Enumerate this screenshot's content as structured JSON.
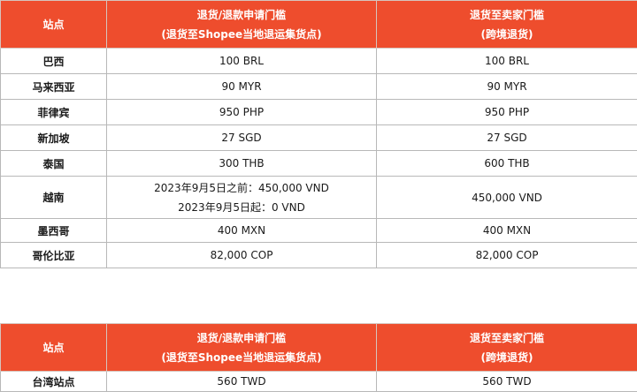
{
  "table1": {
    "header": {
      "site": "站点",
      "col2_line1": "退货/退款申请门槛",
      "col2_line2": "(退货至Shopee当地退运集货点)",
      "col3_line1": "退货至卖家门槛",
      "col3_line2": "(跨境退货)"
    },
    "rows": [
      {
        "site": "巴西",
        "local": "100 BRL",
        "seller": "100 BRL"
      },
      {
        "site": "马来西亚",
        "local": "90 MYR",
        "seller": "90 MYR"
      },
      {
        "site": "菲律宾",
        "local": "950 PHP",
        "seller": "950 PHP"
      },
      {
        "site": "新加坡",
        "local": "27 SGD",
        "seller": "27 SGD"
      },
      {
        "site": "泰国",
        "local": "300 THB",
        "seller": "600 THB"
      },
      {
        "site": "越南",
        "local_line1": "2023年9月5日之前：450,000 VND",
        "local_line2": "2023年9月5日起：0 VND",
        "seller": "450,000 VND"
      },
      {
        "site": "墨西哥",
        "local": "400 MXN",
        "seller": "400 MXN"
      },
      {
        "site": "哥伦比亚",
        "local": "82,000 COP",
        "seller": "82,000 COP"
      }
    ]
  },
  "table2": {
    "header": {
      "site": "站点",
      "col2_line1": "退货/退款申请门槛",
      "col2_line2": "(退货至Shopee当地退运集货点)",
      "col3_line1": "退货至卖家门槛",
      "col3_line2": "(跨境退货)"
    },
    "rows": [
      {
        "site": "台湾站点",
        "local": "560 TWD",
        "seller": "560 TWD"
      }
    ]
  },
  "colors": {
    "header_bg": "#ee4d2d",
    "header_text": "#ffffff",
    "border": "#b8b8b8"
  }
}
